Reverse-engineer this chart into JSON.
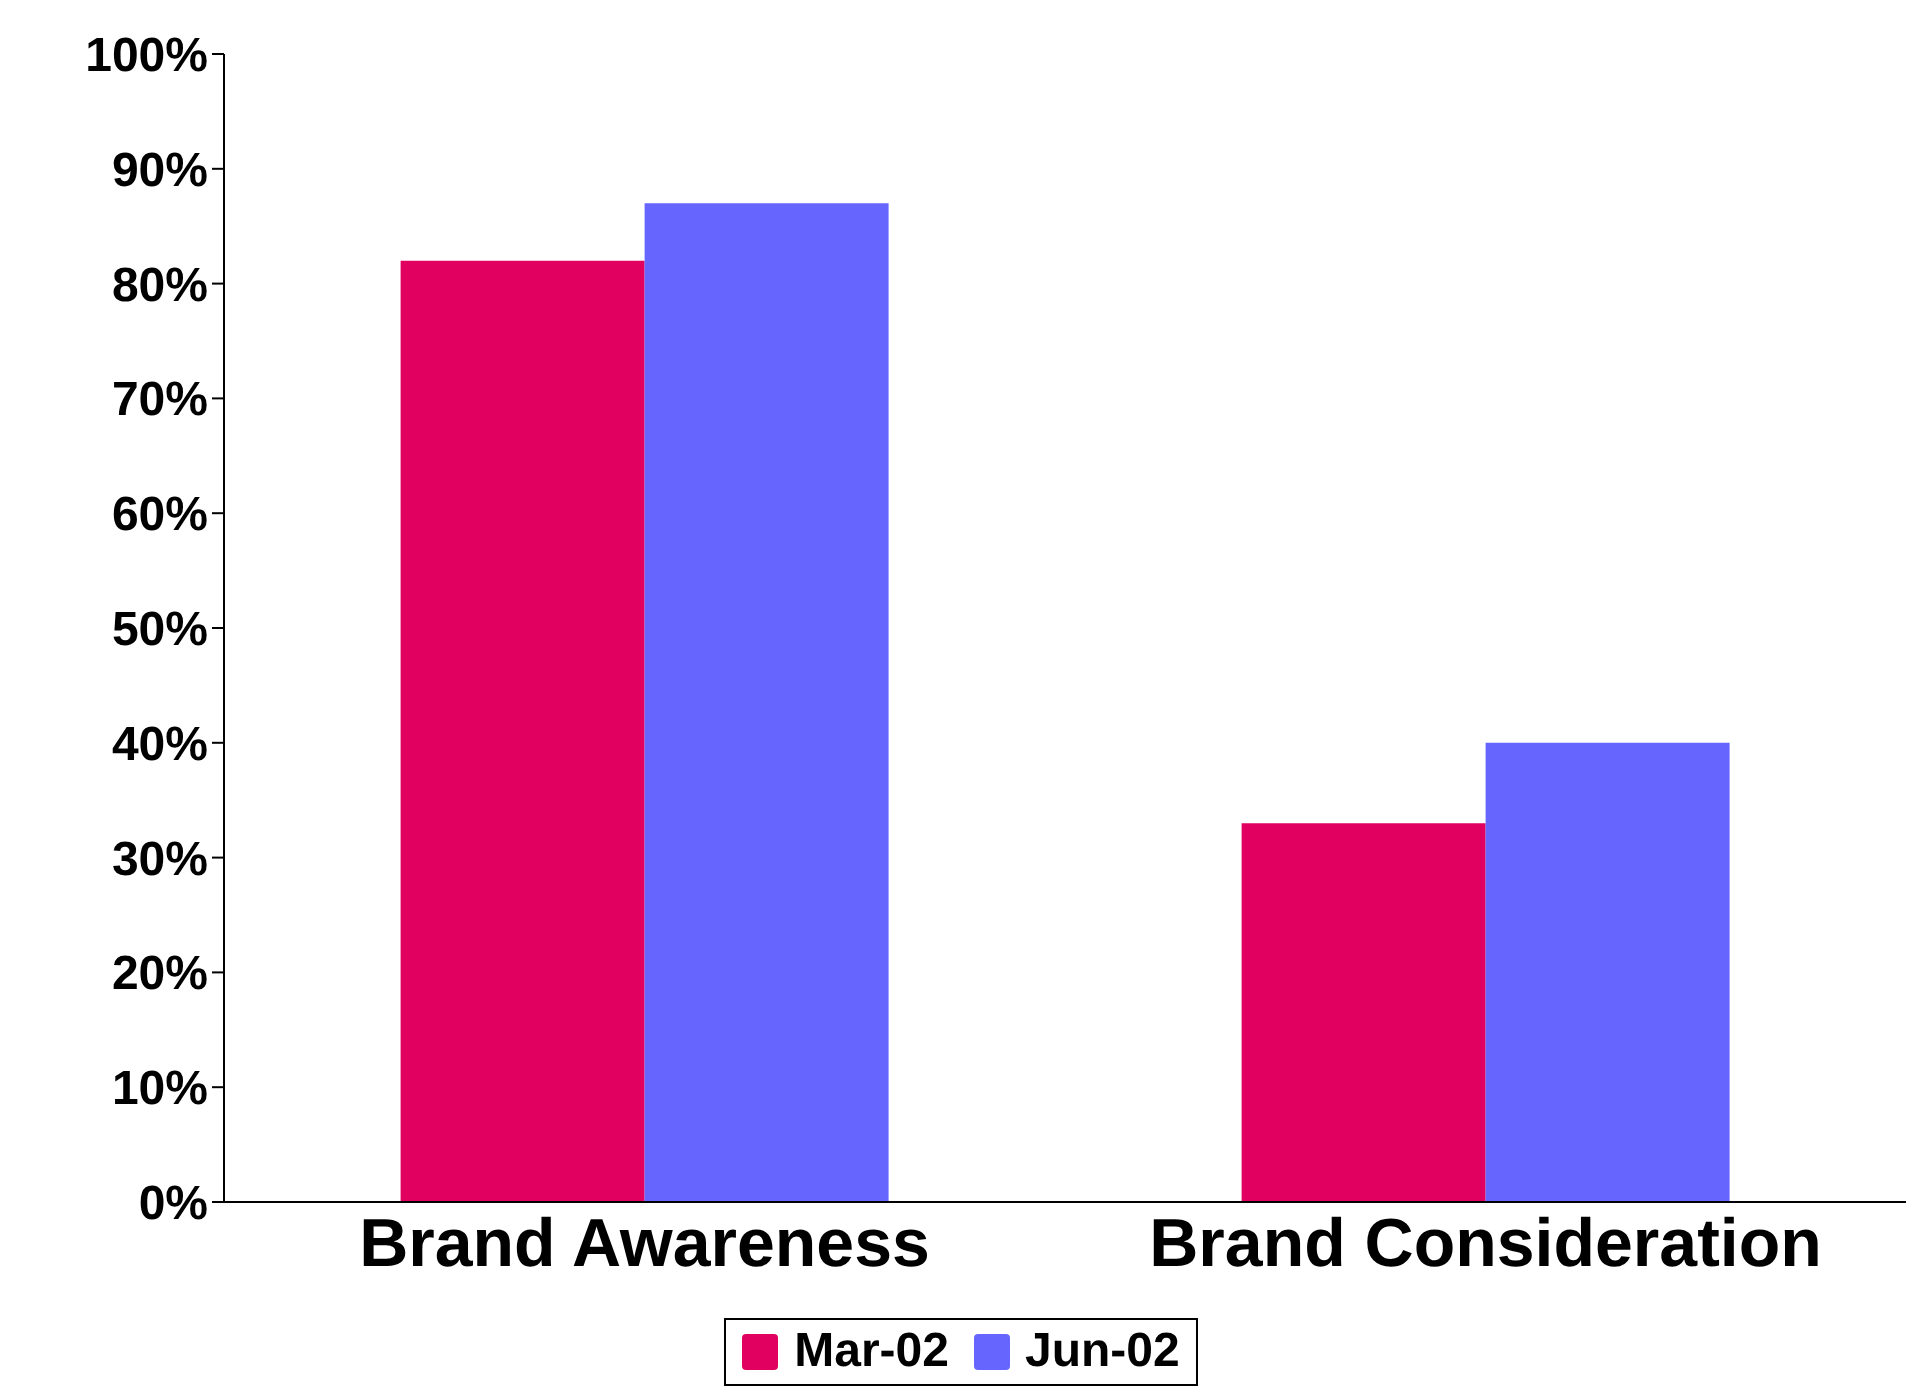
{
  "chart_data": {
    "type": "bar",
    "categories": [
      "Brand Awareness",
      "Brand Consideration"
    ],
    "series": [
      {
        "name": "Mar-02",
        "color": "#e10060",
        "values": [
          82,
          33
        ]
      },
      {
        "name": "Jun-02",
        "color": "#6666ff",
        "values": [
          87,
          40
        ]
      }
    ],
    "ylim": [
      0,
      100
    ],
    "yticks": [
      {
        "value": 0,
        "label": "0%"
      },
      {
        "value": 10,
        "label": "10%"
      },
      {
        "value": 20,
        "label": "20%"
      },
      {
        "value": 30,
        "label": "30%"
      },
      {
        "value": 40,
        "label": "40%"
      },
      {
        "value": 50,
        "label": "50%"
      },
      {
        "value": 60,
        "label": "60%"
      },
      {
        "value": 70,
        "label": "70%"
      },
      {
        "value": 80,
        "label": "80%"
      },
      {
        "value": 90,
        "label": "90%"
      },
      {
        "value": 100,
        "label": "100%"
      }
    ],
    "grid": false,
    "legend": "bottom"
  }
}
